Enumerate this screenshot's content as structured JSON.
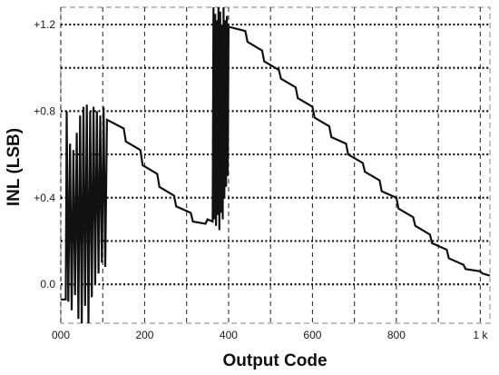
{
  "chart_data": {
    "type": "line",
    "title": "",
    "xlabel": "Output Code",
    "ylabel": "INL (LSB)",
    "xlim": [
      0,
      1023
    ],
    "ylim": [
      -0.18,
      1.28
    ],
    "x_ticks": [
      0,
      200,
      400,
      600,
      800,
      1000
    ],
    "x_tick_labels": [
      "000",
      "200",
      "400",
      "600",
      "800",
      "1 k"
    ],
    "y_ticks": [
      0.0,
      0.4,
      0.8,
      1.2
    ],
    "y_tick_labels": [
      "0.0",
      "+0.4",
      "+0.8",
      "+1.2"
    ],
    "h_grid": [
      0.0,
      0.2,
      0.4,
      0.6,
      0.8,
      1.0,
      1.2
    ],
    "v_grid": [
      0,
      100,
      200,
      300,
      400,
      500,
      600,
      700,
      800,
      900,
      1000
    ],
    "grid": true,
    "legend": "none",
    "colors": {
      "line": "#111111",
      "grid": "#111111",
      "frame": "#9a9a9a"
    },
    "series": [
      {
        "x": [
          0,
          12,
          14,
          18,
          22,
          26,
          30,
          34,
          38,
          42,
          46,
          50,
          54,
          58,
          62,
          66,
          70,
          74,
          78,
          82,
          86,
          90,
          94,
          98,
          102,
          106,
          110,
          150,
          155,
          190,
          195,
          230,
          235,
          270,
          275,
          310,
          315,
          345,
          350,
          362,
          364,
          366,
          368,
          370,
          372,
          374,
          376,
          378,
          380,
          382,
          384,
          386,
          388,
          390,
          392,
          394,
          396,
          398,
          400,
          440,
          445,
          480,
          485,
          520,
          525,
          560,
          565,
          600,
          605,
          640,
          645,
          680,
          685,
          720,
          725,
          760,
          765,
          800,
          805,
          840,
          845,
          880,
          885,
          920,
          925,
          960,
          965,
          1000,
          1005,
          1023
        ],
        "y": [
          -0.07,
          -0.07,
          0.8,
          -0.08,
          0.65,
          -0.12,
          0.62,
          -0.05,
          0.7,
          -0.16,
          0.78,
          -0.18,
          0.82,
          -0.1,
          0.83,
          -0.18,
          0.8,
          -0.06,
          0.82,
          0.0,
          0.8,
          0.05,
          0.78,
          0.1,
          0.82,
          0.08,
          0.76,
          0.72,
          0.66,
          0.62,
          0.55,
          0.51,
          0.45,
          0.41,
          0.36,
          0.33,
          0.29,
          0.28,
          0.3,
          0.29,
          1.28,
          0.3,
          1.25,
          0.27,
          1.22,
          0.32,
          1.28,
          0.25,
          1.26,
          0.33,
          1.2,
          0.3,
          1.28,
          0.4,
          1.22,
          0.45,
          1.24,
          0.5,
          1.19,
          1.17,
          1.12,
          1.08,
          1.03,
          0.99,
          0.95,
          0.91,
          0.86,
          0.82,
          0.77,
          0.73,
          0.68,
          0.65,
          0.6,
          0.56,
          0.52,
          0.48,
          0.43,
          0.4,
          0.35,
          0.31,
          0.27,
          0.23,
          0.19,
          0.16,
          0.12,
          0.09,
          0.07,
          0.06,
          0.05,
          0.04
        ]
      }
    ]
  }
}
